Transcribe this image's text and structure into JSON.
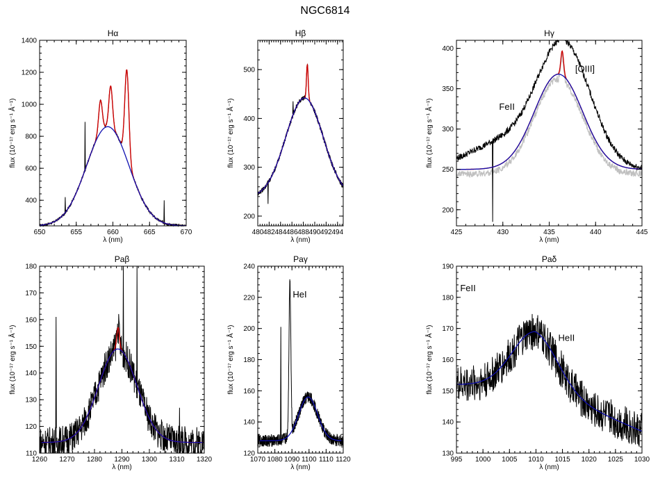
{
  "figure_title": "NGC6814",
  "colors": {
    "data": "#000000",
    "narrow_fit": "#cc0000",
    "broad_fit": "#1010b0",
    "alt_spectrum": "#c0c0c0"
  },
  "chart_data": [
    {
      "type": "line",
      "title": "Hα",
      "xlabel": "λ (nm)",
      "ylabel": "flux (10⁻¹⁷ erg s⁻¹ Å⁻¹)",
      "xlim": [
        650,
        670
      ],
      "ylim": [
        240,
        1400
      ],
      "xticks": [
        650,
        655,
        660,
        665,
        670
      ],
      "yticks": [
        400,
        600,
        800,
        1000,
        1200,
        1400
      ],
      "broad": {
        "center": 659.3,
        "amp": 620,
        "width": 2.9,
        "base": 240
      },
      "narrow_lines": [
        {
          "center": 658.3,
          "amp": 200,
          "width": 0.25
        },
        {
          "center": 659.7,
          "amp": 260,
          "width": 0.25
        },
        {
          "center": 661.9,
          "amp": 560,
          "width": 0.28
        }
      ],
      "noise": 8,
      "spikes": [
        {
          "x": 656.2,
          "y": 890
        },
        {
          "x": 653.5,
          "y": 420
        },
        {
          "x": 667.0,
          "y": 400
        }
      ],
      "annotations": []
    },
    {
      "type": "line",
      "title": "Hβ",
      "xlabel": "λ (nm)",
      "ylabel": "flux (10⁻¹⁷ erg s⁻¹ Å⁻¹)",
      "xlim": [
        480,
        495
      ],
      "ylim": [
        180,
        560
      ],
      "xticks": [
        480,
        482,
        484,
        486,
        488,
        490,
        492,
        494
      ],
      "yticks": [
        200,
        300,
        400,
        500
      ],
      "broad": {
        "center": 488.2,
        "amp": 205,
        "width": 3.3,
        "base": 237
      },
      "narrow_lines": [
        {
          "center": 488.7,
          "amp": 70,
          "width": 0.15
        }
      ],
      "noise": 5,
      "spikes": [
        {
          "x": 486.2,
          "y": 435
        },
        {
          "x": 481.8,
          "y": 225
        }
      ],
      "annotations": []
    },
    {
      "type": "line",
      "title": "Hγ",
      "xlabel": "λ (nm)",
      "ylabel": "flux (10⁻¹⁷ erg s⁻¹ Å⁻¹)",
      "xlim": [
        425,
        445
      ],
      "ylim": [
        180,
        410
      ],
      "xticks": [
        425,
        430,
        435,
        440,
        445
      ],
      "yticks": [
        200,
        250,
        300,
        350,
        400
      ],
      "broad": {
        "center": 436.0,
        "amp": 118,
        "width": 2.6,
        "base": 250
      },
      "narrow_lines": [
        {
          "center": 436.4,
          "amp": 30,
          "width": 0.15
        }
      ],
      "noise": 4,
      "spikes": [
        {
          "x": 428.9,
          "y": 185
        }
      ],
      "extra_bumps": [
        {
          "center": 430.5,
          "amp": 35,
          "width": 4
        },
        {
          "center": 438.5,
          "amp": 45,
          "width": 2.5
        }
      ],
      "alt_spectrum": true,
      "annotations": [
        {
          "text": "FeII",
          "x": 429.6,
          "y": 324
        },
        {
          "text": "[OIII]",
          "x": 437.8,
          "y": 371
        }
      ]
    },
    {
      "type": "line",
      "title": "Paβ",
      "xlabel": "λ (nm)",
      "ylabel": "flux (10⁻¹⁷ erg s⁻¹ Å⁻¹)",
      "xlim": [
        1260,
        1320
      ],
      "ylim": [
        110,
        180
      ],
      "xticks": [
        1260,
        1270,
        1280,
        1290,
        1300,
        1310,
        1320
      ],
      "yticks": [
        110,
        120,
        130,
        140,
        150,
        160,
        170,
        180
      ],
      "broad": {
        "center": 1288.5,
        "amp": 35,
        "width": 7,
        "base": 114
      },
      "narrow_lines": [
        {
          "center": 1288.6,
          "amp": 8,
          "width": 0.5
        }
      ],
      "noise": 6,
      "spikes": [
        {
          "x": 1266,
          "y": 161
        },
        {
          "x": 1290.5,
          "y": 180
        },
        {
          "x": 1295.5,
          "y": 180
        },
        {
          "x": 1311,
          "y": 127
        }
      ],
      "annotations": []
    },
    {
      "type": "line",
      "title": "Paγ",
      "xlabel": "λ (nm)",
      "ylabel": "flux (10⁻¹⁷ erg s⁻¹ Å⁻¹)",
      "xlim": [
        1070,
        1120
      ],
      "ylim": [
        120,
        240
      ],
      "xticks": [
        1070,
        1080,
        1090,
        1100,
        1110,
        1120
      ],
      "yticks": [
        120,
        140,
        160,
        180,
        200,
        220,
        240
      ],
      "broad": {
        "center": 1099.5,
        "amp": 28,
        "width": 5.5,
        "base": 128
      },
      "narrow_lines": [],
      "noise": 4,
      "spikes": [
        {
          "x": 1083.5,
          "y": 201
        }
      ],
      "extra_bumps": [
        {
          "center": 1088.8,
          "amp": 98,
          "width": 0.55
        }
      ],
      "annotations": [
        {
          "text": "HeI",
          "x": 1090.5,
          "y": 220
        }
      ]
    },
    {
      "type": "line",
      "title": "Paδ",
      "xlabel": "λ (nm)",
      "ylabel": "flux (10⁻¹⁷ erg s⁻¹ Å⁻¹)",
      "xlim": [
        995,
        1030
      ],
      "ylim": [
        130,
        190
      ],
      "xticks": [
        995,
        1000,
        1005,
        1010,
        1015,
        1020,
        1025,
        1030
      ],
      "yticks": [
        130,
        140,
        150,
        160,
        170,
        180,
        190
      ],
      "broad": {
        "center": 1009.8,
        "amp": 17,
        "width": 4.3,
        "base": 152,
        "tail_end": 137
      },
      "narrow_lines": [],
      "noise": 6,
      "spikes": [],
      "annotations": [
        {
          "text": "FeII",
          "x": 995.7,
          "y": 182
        },
        {
          "text": "HeII",
          "x": 1014.2,
          "y": 166
        }
      ]
    }
  ]
}
